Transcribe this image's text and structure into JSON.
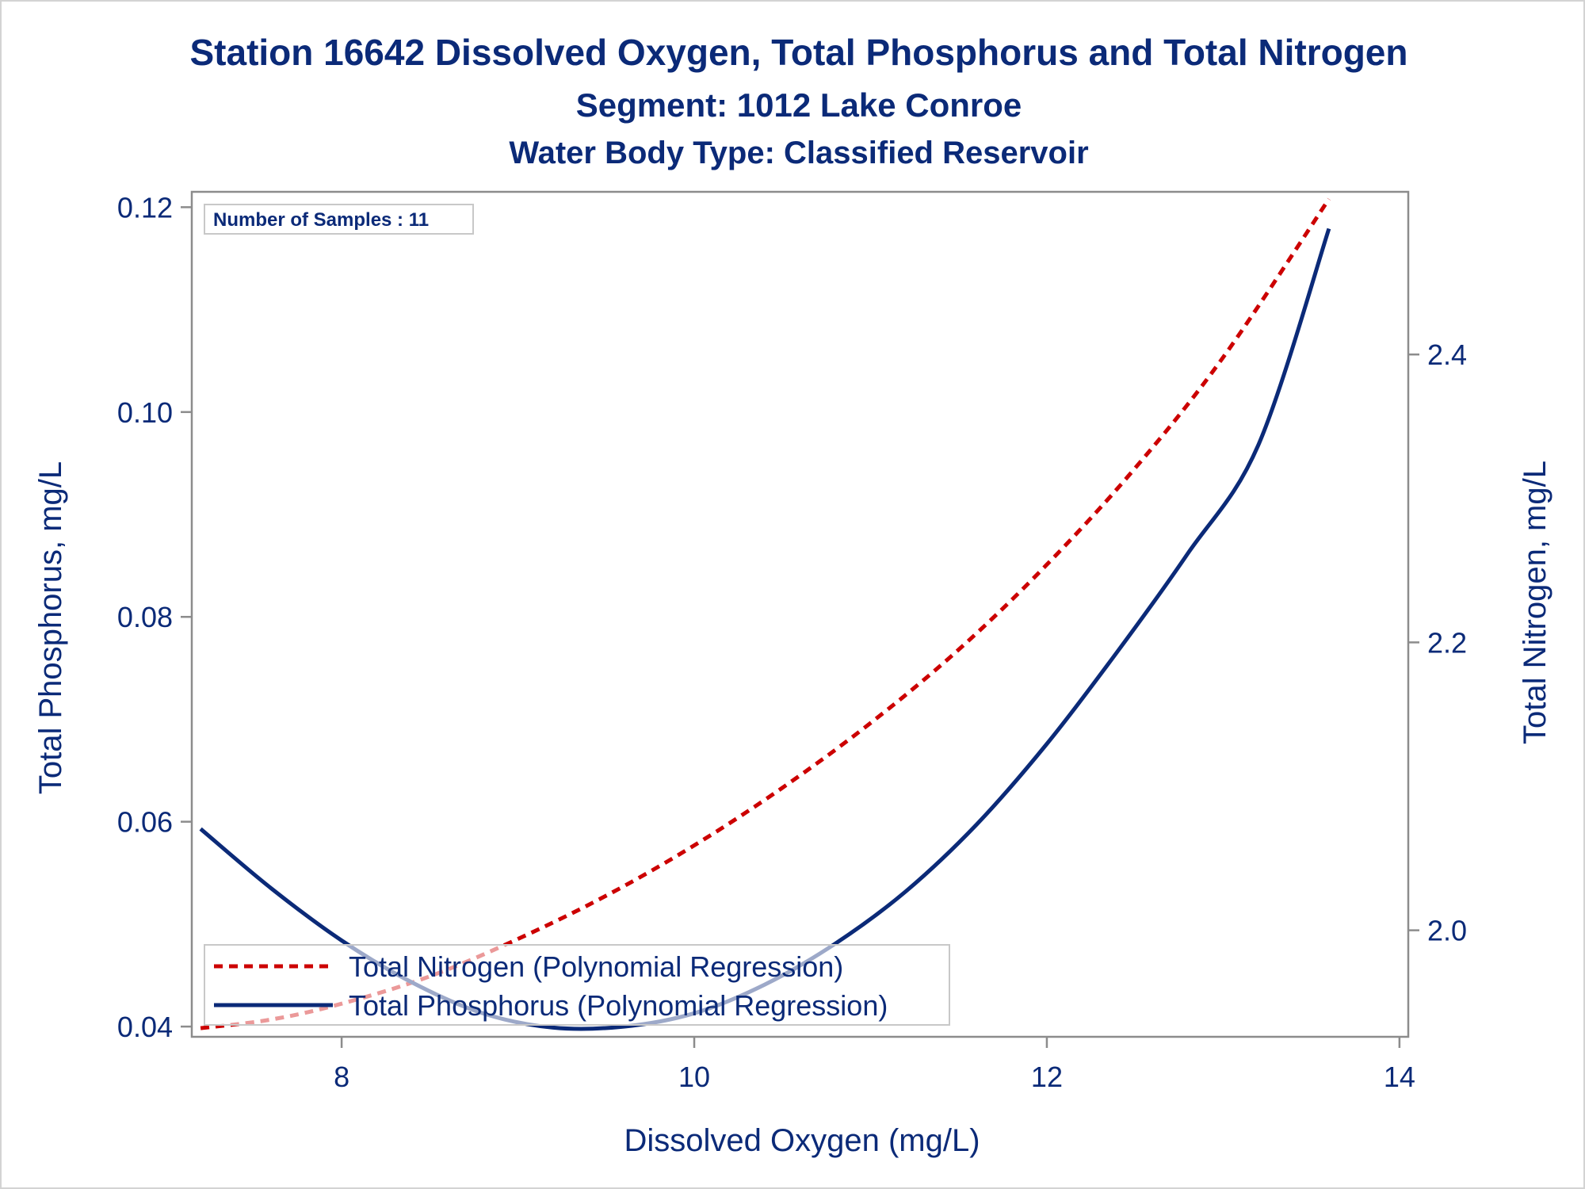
{
  "chart_data": {
    "type": "line",
    "title": "Station 16642  Dissolved Oxygen, Total Phosphorus and Total Nitrogen",
    "subtitle": "Segment: 1012  Lake Conroe",
    "subtitle2": "Water Body Type: Classified Reservoir",
    "inset_label": "Number of Samples : 11",
    "xlabel": "Dissolved Oxygen (mg/L)",
    "ylabel_left": "Total Phosphorus, mg/L",
    "ylabel_right": "Total Nitrogen, mg/L",
    "xlim": [
      7.15,
      14.05
    ],
    "ylim_left": [
      0.039,
      0.1215
    ],
    "ylim_right": [
      1.926,
      2.513
    ],
    "x_ticks": [
      8,
      10,
      12,
      14
    ],
    "x_tick_labels": [
      "8",
      "10",
      "12",
      "14"
    ],
    "y_left_ticks": [
      0.04,
      0.06,
      0.08,
      0.1,
      0.12
    ],
    "y_left_tick_labels": [
      "0.04",
      "0.06",
      "0.08",
      "0.10",
      "0.12"
    ],
    "y_right_ticks": [
      2.0,
      2.2,
      2.4
    ],
    "y_right_tick_labels": [
      "2.0",
      "2.2",
      "2.4"
    ],
    "grid": false,
    "legend_placement": "bottom-left",
    "series": [
      {
        "name": "Total Nitrogen (Polynomial Regression)",
        "axis": "right",
        "style": "dashed",
        "color": "#cc0000",
        "x": [
          7.2,
          7.6,
          8.0,
          8.5,
          9.0,
          9.5,
          10.0,
          10.5,
          11.0,
          11.5,
          12.0,
          12.5,
          13.0,
          13.6
        ],
        "y": [
          1.932,
          1.938,
          1.949,
          1.968,
          1.994,
          2.024,
          2.059,
          2.099,
          2.144,
          2.195,
          2.254,
          2.321,
          2.398,
          2.508
        ]
      },
      {
        "name": "Total Phosphorus (Polynomial Regression)",
        "axis": "left",
        "style": "solid",
        "color": "#0b2a78",
        "x": [
          7.2,
          7.6,
          8.0,
          8.4,
          8.8,
          9.2,
          9.6,
          10.0,
          10.4,
          10.8,
          11.2,
          11.6,
          12.0,
          12.4,
          12.8,
          13.2,
          13.6
        ],
        "y": [
          0.0593,
          0.0535,
          0.0484,
          0.0443,
          0.0413,
          0.0399,
          0.04,
          0.0413,
          0.0441,
          0.0481,
          0.0532,
          0.0597,
          0.0676,
          0.0766,
          0.0862,
          0.0968,
          0.1179
        ]
      }
    ]
  },
  "colors": {
    "text": "#0b2a78",
    "frame": "#8c8c8c",
    "nitrogen": "#cc0000",
    "phosphorus": "#0b2a78",
    "legend_border": "#c8c8c8"
  }
}
